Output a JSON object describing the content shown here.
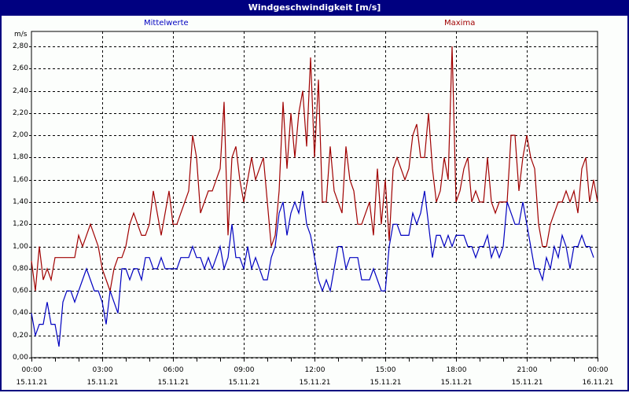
{
  "window": {
    "title": "Windgeschwindigkeit [m/s]"
  },
  "legend": {
    "mean": "Mittelwerte",
    "max": "Maxima"
  },
  "axis": {
    "y_unit": "m/s"
  },
  "colors": {
    "titlebar": "#000080",
    "mean": "#0000c0",
    "max": "#a00000",
    "background": "#fcfefc"
  },
  "chart_data": {
    "type": "line",
    "title": "Windgeschwindigkeit [m/s]",
    "xlabel": "",
    "ylabel": "m/s",
    "ylim": [
      0,
      2.8
    ],
    "yticks": [
      "0,00",
      "0,20",
      "0,40",
      "0,60",
      "0,80",
      "1,00",
      "1,20",
      "1,40",
      "1,60",
      "1,80",
      "2,00",
      "2,20",
      "2,40",
      "2,60",
      "2,80"
    ],
    "xticks": [
      {
        "time": "00:00",
        "date": "15.11.21"
      },
      {
        "time": "03:00",
        "date": "15.11.21"
      },
      {
        "time": "06:00",
        "date": "15.11.21"
      },
      {
        "time": "09:00",
        "date": "15.11.21"
      },
      {
        "time": "12:00",
        "date": "15.11.21"
      },
      {
        "time": "15:00",
        "date": "15.11.21"
      },
      {
        "time": "18:00",
        "date": "15.11.21"
      },
      {
        "time": "21:00",
        "date": "15.11.21"
      },
      {
        "time": "00:00",
        "date": "16.11.21"
      }
    ],
    "grid": true,
    "legend_position": "top",
    "x_interval_minutes": 10,
    "series": [
      {
        "name": "Mittelwerte",
        "color": "#0000c0",
        "values": [
          0.4,
          0.2,
          0.3,
          0.3,
          0.5,
          0.3,
          0.3,
          0.1,
          0.5,
          0.6,
          0.6,
          0.5,
          0.6,
          0.7,
          0.8,
          0.7,
          0.6,
          0.6,
          0.5,
          0.3,
          0.6,
          0.5,
          0.4,
          0.8,
          0.8,
          0.7,
          0.8,
          0.8,
          0.7,
          0.9,
          0.9,
          0.8,
          0.8,
          0.9,
          0.8,
          0.8,
          0.8,
          0.8,
          0.9,
          0.9,
          0.9,
          1.0,
          0.9,
          0.9,
          0.8,
          0.9,
          0.8,
          0.9,
          1.0,
          0.8,
          0.9,
          1.2,
          0.9,
          0.9,
          0.8,
          1.0,
          0.8,
          0.9,
          0.8,
          0.7,
          0.7,
          0.9,
          1.0,
          1.3,
          1.4,
          1.1,
          1.3,
          1.4,
          1.3,
          1.5,
          1.2,
          1.1,
          0.9,
          0.7,
          0.6,
          0.7,
          0.6,
          0.8,
          1.0,
          1.0,
          0.8,
          0.9,
          0.9,
          0.9,
          0.7,
          0.7,
          0.7,
          0.8,
          0.7,
          0.6,
          0.6,
          1.0,
          1.2,
          1.2,
          1.1,
          1.1,
          1.1,
          1.3,
          1.2,
          1.3,
          1.5,
          1.2,
          0.9,
          1.1,
          1.1,
          1.0,
          1.1,
          1.0,
          1.1,
          1.1,
          1.1,
          1.0,
          1.0,
          0.9,
          1.0,
          1.0,
          1.1,
          0.9,
          1.0,
          0.9,
          1.0,
          1.4,
          1.3,
          1.2,
          1.2,
          1.4,
          1.2,
          1.0,
          0.8,
          0.8,
          0.7,
          0.9,
          0.8,
          1.0,
          0.9,
          1.1,
          1.0,
          0.8,
          1.0,
          1.0,
          1.1,
          1.0,
          1.0,
          0.9
        ]
      },
      {
        "name": "Maxima",
        "color": "#a00000",
        "values": [
          0.87,
          0.6,
          1.0,
          0.7,
          0.8,
          0.7,
          0.9,
          0.9,
          0.9,
          0.9,
          0.9,
          0.9,
          1.1,
          1.0,
          1.1,
          1.2,
          1.1,
          1.0,
          0.8,
          0.7,
          0.6,
          0.8,
          0.9,
          0.9,
          1.0,
          1.2,
          1.3,
          1.2,
          1.1,
          1.1,
          1.2,
          1.5,
          1.3,
          1.1,
          1.3,
          1.5,
          1.2,
          1.2,
          1.3,
          1.4,
          1.5,
          2.0,
          1.8,
          1.3,
          1.4,
          1.5,
          1.5,
          1.6,
          1.7,
          2.3,
          1.1,
          1.8,
          1.9,
          1.6,
          1.4,
          1.6,
          1.8,
          1.6,
          1.7,
          1.8,
          1.4,
          1.0,
          1.1,
          1.5,
          2.3,
          1.7,
          2.2,
          1.8,
          2.2,
          2.4,
          1.9,
          2.7,
          1.8,
          2.5,
          1.4,
          1.4,
          1.9,
          1.5,
          1.4,
          1.3,
          1.9,
          1.6,
          1.5,
          1.2,
          1.2,
          1.3,
          1.4,
          1.1,
          1.7,
          1.2,
          1.6,
          1.05,
          1.7,
          1.8,
          1.7,
          1.6,
          1.7,
          2.0,
          2.1,
          1.8,
          1.8,
          2.2,
          1.7,
          1.4,
          1.5,
          1.8,
          1.6,
          2.8,
          1.4,
          1.5,
          1.7,
          1.8,
          1.4,
          1.5,
          1.4,
          1.4,
          1.8,
          1.4,
          1.3,
          1.4,
          1.4,
          1.4,
          2.0,
          2.0,
          1.5,
          1.8,
          2.0,
          1.8,
          1.7,
          1.2,
          1.0,
          1.0,
          1.2,
          1.3,
          1.4,
          1.4,
          1.5,
          1.4,
          1.5,
          1.3,
          1.7,
          1.8,
          1.4,
          1.6,
          1.4
        ]
      }
    ]
  }
}
